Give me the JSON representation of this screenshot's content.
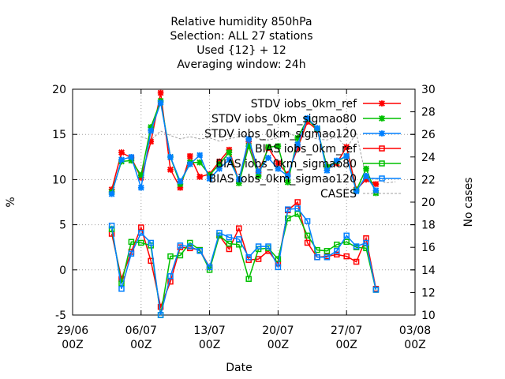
{
  "chart_data": {
    "type": "line",
    "title_lines": [
      "Relative humidity 850hPa",
      "Selection: ALL      27 stations",
      "Used {12} + 12",
      "Averaging window: 24h"
    ],
    "xlabel": "Date",
    "ylabel": "%",
    "y2label": "No cases",
    "x_ticks": [
      {
        "day": -3,
        "label": [
          "29/06",
          "00Z"
        ]
      },
      {
        "day": 4,
        "label": [
          "06/07",
          "00Z"
        ]
      },
      {
        "day": 11,
        "label": [
          "13/07",
          "00Z"
        ]
      },
      {
        "day": 18,
        "label": [
          "20/07",
          "00Z"
        ]
      },
      {
        "day": 25,
        "label": [
          "27/07",
          "00Z"
        ]
      },
      {
        "day": 32,
        "label": [
          "03/08",
          "00Z"
        ]
      }
    ],
    "x_range_days": [
      -3,
      32
    ],
    "x_origin_label": "01/07 00Z",
    "ylim": [
      -5,
      20
    ],
    "y_ticks": [
      -5,
      0,
      5,
      10,
      15,
      20
    ],
    "y2lim": [
      10,
      30
    ],
    "y2_ticks": [
      10,
      12,
      14,
      16,
      18,
      20,
      22,
      24,
      26,
      28,
      30
    ],
    "grid": true,
    "legend_position": "top-right",
    "x": [
      1,
      2,
      3,
      4,
      5,
      6,
      7,
      8,
      9,
      10,
      11,
      12,
      13,
      14,
      15,
      16,
      17,
      18,
      19,
      20,
      21,
      22,
      23,
      24,
      25,
      26,
      27,
      28
    ],
    "series": [
      {
        "name": "STDV iobs_0km_ref",
        "color": "#ff0000",
        "marker": "x",
        "axis": "y1",
        "values": [
          8.9,
          13.0,
          12.4,
          10.2,
          14.2,
          19.6,
          11.1,
          9.1,
          12.6,
          10.3,
          10.6,
          12.0,
          13.3,
          9.8,
          14.2,
          10.8,
          13.5,
          11.8,
          10.6,
          13.5,
          16.4,
          15.5,
          11.4,
          11.8,
          13.6,
          8.9,
          10.0,
          9.5
        ]
      },
      {
        "name": "STDV iobs_0km_sigmao80",
        "color": "#00c000",
        "marker": "x",
        "axis": "y1",
        "values": [
          8.6,
          12.0,
          12.1,
          10.5,
          15.8,
          18.7,
          12.5,
          9.5,
          11.9,
          11.9,
          10.5,
          11.7,
          13.0,
          9.6,
          13.7,
          10.4,
          13.6,
          13.7,
          9.7,
          14.6,
          16.7,
          15.6,
          11.4,
          12.0,
          12.6,
          8.8,
          11.2,
          8.5
        ]
      },
      {
        "name": "STDV iobs_0km_sigmao120",
        "color": "#0080ff",
        "marker": "x",
        "axis": "y1",
        "values": [
          8.4,
          12.2,
          12.5,
          9.1,
          15.4,
          18.5,
          12.5,
          9.8,
          11.7,
          12.7,
          10.1,
          11.2,
          12.2,
          10.0,
          14.5,
          10.9,
          12.4,
          11.2,
          10.4,
          13.9,
          16.8,
          15.7,
          11.0,
          12.1,
          12.6,
          8.7,
          10.4,
          8.8
        ]
      },
      {
        "name": "BIAS iobs_0km_ref",
        "color": "#ff0000",
        "marker": "square",
        "axis": "y1",
        "values": [
          4.0,
          -1.0,
          2.0,
          4.7,
          1.0,
          -4.1,
          -1.3,
          2.5,
          2.4,
          2.2,
          0.3,
          3.8,
          2.3,
          4.6,
          1.1,
          1.2,
          2.1,
          0.7,
          6.6,
          7.5,
          3.0,
          1.4,
          1.5,
          1.7,
          1.5,
          0.9,
          3.5,
          -2.1
        ]
      },
      {
        "name": "BIAS iobs_0km_sigmao80",
        "color": "#00c000",
        "marker": "square",
        "axis": "y1",
        "values": [
          4.5,
          -1.5,
          3.1,
          3.0,
          2.7,
          -5.0,
          1.5,
          1.6,
          3.0,
          2.2,
          0.0,
          3.8,
          2.9,
          2.8,
          -1.0,
          2.3,
          2.4,
          1.2,
          5.7,
          6.2,
          3.8,
          2.2,
          2.1,
          2.8,
          3.1,
          2.5,
          2.4,
          -2.2
        ]
      },
      {
        "name": "BIAS iobs_0km_sigmao120",
        "color": "#0080ff",
        "marker": "square",
        "axis": "y1",
        "values": [
          4.9,
          -2.1,
          1.8,
          4.1,
          3.0,
          -5.0,
          -0.7,
          2.7,
          2.6,
          2.1,
          0.3,
          4.1,
          3.6,
          3.4,
          1.4,
          2.6,
          2.6,
          0.3,
          6.7,
          6.8,
          5.4,
          1.4,
          1.4,
          2.1,
          3.8,
          2.6,
          3.0,
          -2.2
        ]
      },
      {
        "name": "CASES",
        "color": "#a0a0a0",
        "style": "dashed",
        "axis": "y2",
        "x": [
          4,
          5,
          6,
          7,
          8,
          9,
          10,
          11,
          12,
          13,
          14,
          15,
          16,
          17,
          18,
          19,
          20,
          21,
          22,
          23,
          24,
          25,
          26,
          27,
          28,
          29,
          30
        ],
        "values": [
          25.8,
          25.5,
          26.3,
          25.9,
          25.6,
          25.8,
          25.6,
          25.7,
          25.4,
          25.6,
          25.8,
          26.0,
          25.6,
          25.5,
          25.7,
          26.2,
          25.7,
          25.8,
          25.6,
          25.5,
          25.8,
          24.8,
          26.1,
          22.2,
          22.1,
          21.7,
          21.8
        ]
      }
    ]
  }
}
